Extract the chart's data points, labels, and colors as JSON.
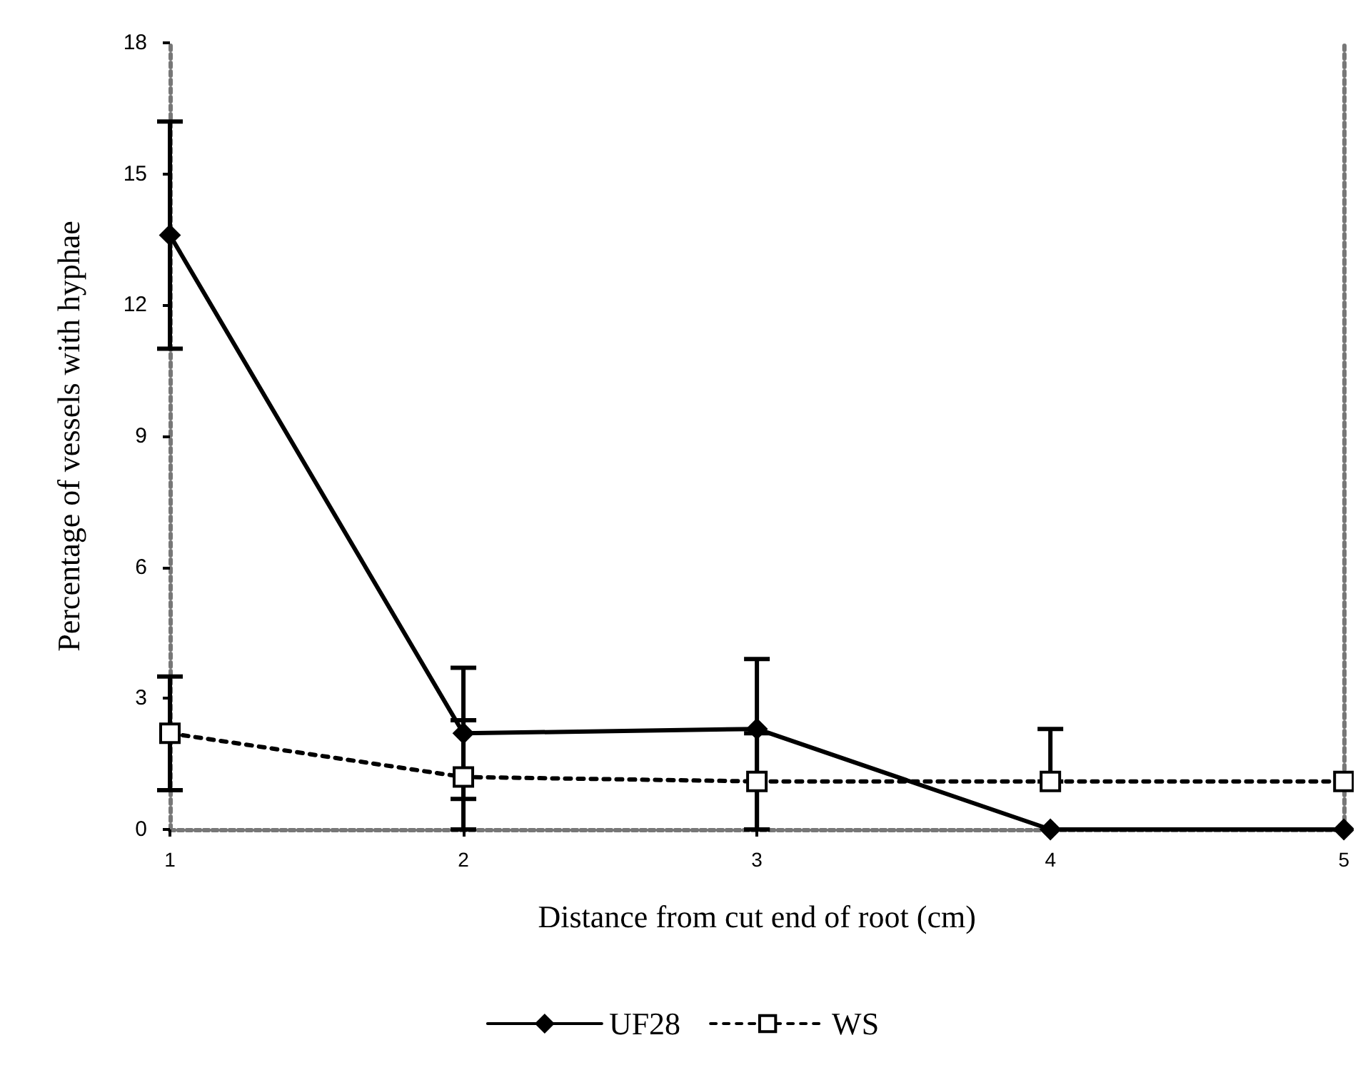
{
  "chart_data": {
    "type": "line",
    "xlabel": "Distance from cut end of root (cm)",
    "ylabel": "Percentage of vessels with hyphae",
    "x": [
      1,
      2,
      3,
      4,
      5
    ],
    "xlim": [
      1,
      5
    ],
    "xticks": [
      1,
      2,
      3,
      4,
      5
    ],
    "ylim": [
      0,
      18
    ],
    "yticks": [
      0,
      3,
      6,
      9,
      12,
      15,
      18
    ],
    "grid": false,
    "legend": "bottom",
    "series": [
      {
        "name": "UF28",
        "color": "#000000",
        "marker": "diamond",
        "line_style": "solid",
        "values": [
          13.6,
          2.2,
          2.3,
          0,
          0
        ],
        "errors": [
          2.6,
          1.5,
          [
            0,
            3.9
          ],
          null,
          null
        ]
      },
      {
        "name": "WS",
        "color": "#000000",
        "marker": "square",
        "line_style": "dashed",
        "values": [
          2.2,
          1.2,
          1.1,
          1.1,
          1.1
        ],
        "errors": [
          1.3,
          [
            0,
            2.5
          ],
          [
            0,
            2.2
          ],
          [
            1.1,
            2.3
          ],
          null
        ]
      }
    ]
  }
}
